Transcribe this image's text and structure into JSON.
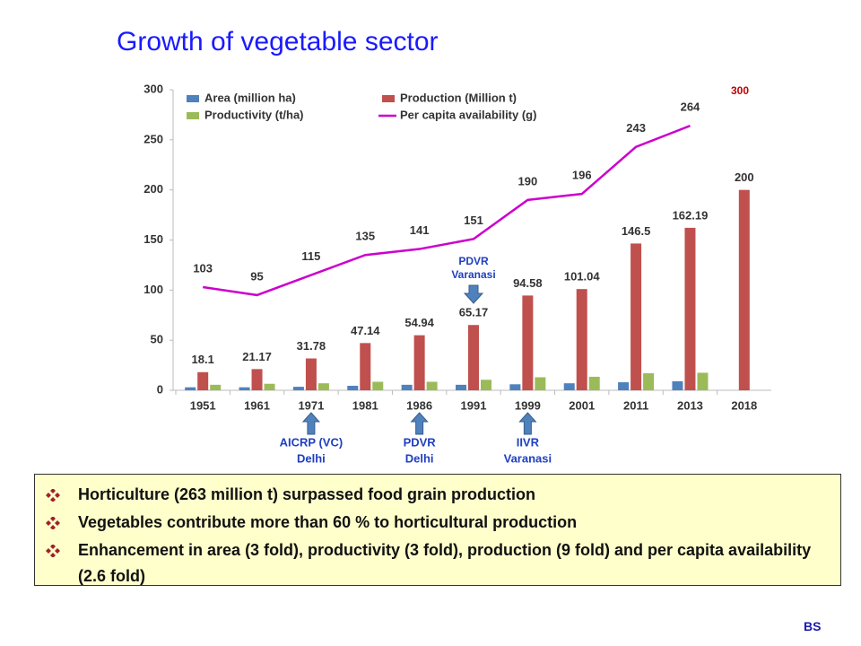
{
  "title": "Growth of vegetable sector",
  "chart_data": {
    "type": "bar",
    "categories": [
      "1951",
      "1961",
      "1971",
      "1981",
      "1986",
      "1991",
      "1999",
      "2001",
      "2011",
      "2013",
      "2018"
    ],
    "series": [
      {
        "name": "Area (million ha)",
        "color": "#4f81bd",
        "kind": "bar",
        "values": [
          3,
          3,
          3.5,
          4.5,
          5.5,
          5.5,
          6,
          7,
          8,
          9,
          null
        ]
      },
      {
        "name": "Production (Million t)",
        "color": "#c0504d",
        "kind": "bar",
        "labels": true,
        "values": [
          18.1,
          21.17,
          31.78,
          47.14,
          54.94,
          65.17,
          94.58,
          101.04,
          146.5,
          162.19,
          200
        ]
      },
      {
        "name": "Productivity (t/ha)",
        "color": "#9bbb59",
        "kind": "bar",
        "values": [
          5.5,
          6.5,
          7,
          8.5,
          8.5,
          10.5,
          13,
          13.5,
          17,
          17.5,
          null
        ]
      },
      {
        "name": "Per capita availability (g)",
        "color": "#cc00cc",
        "kind": "line",
        "labels": true,
        "values": [
          103,
          95,
          115,
          135,
          141,
          151,
          190,
          196,
          243,
          264,
          null
        ]
      }
    ],
    "ylim": [
      0,
      300
    ],
    "yticks": [
      0,
      50,
      100,
      150,
      200,
      250,
      300
    ],
    "grid": false,
    "target": 300,
    "annotations": [
      {
        "lines": [
          "AICRP (VC)",
          "Delhi"
        ]
      },
      {
        "lines": [
          "PDVR",
          "Delhi"
        ]
      },
      {
        "lines": [
          "IIVR",
          "Varanasi"
        ]
      },
      {
        "lines": [
          "PDVR",
          "Varanasi"
        ]
      }
    ]
  },
  "bullets": [
    "Horticulture (263 million t) surpassed food grain production",
    "Vegetables contribute more than 60 % to horticultural production",
    "Enhancement in area (3 fold), productivity (3 fold), production (9 fold) and per capita availability (2.6 fold)"
  ],
  "footer": "BS"
}
